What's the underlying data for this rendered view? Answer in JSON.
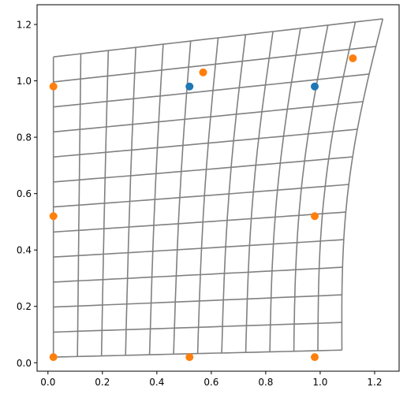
{
  "chart_data": {
    "type": "scatter",
    "title": "",
    "xlabel": "",
    "ylabel": "",
    "xlim": [
      -0.04,
      1.29
    ],
    "ylim": [
      -0.03,
      1.27
    ],
    "xticks": [
      0.0,
      0.2,
      0.4,
      0.6,
      0.8,
      1.0,
      1.2
    ],
    "xtick_labels": [
      "0.0",
      "0.2",
      "0.4",
      "0.6",
      "0.8",
      "1.0",
      "1.2"
    ],
    "yticks": [
      0.0,
      0.2,
      0.4,
      0.6,
      0.8,
      1.0,
      1.2
    ],
    "ytick_labels": [
      "0.0",
      "0.2",
      "0.4",
      "0.6",
      "0.8",
      "1.0",
      "1.2"
    ],
    "grid": false,
    "warped_grid": {
      "color": "#808080",
      "rows": 13,
      "cols": 13,
      "corners": {
        "bottom_left": [
          0.02,
          0.02
        ],
        "bottom_right": [
          1.08,
          0.045
        ],
        "top_left": [
          0.02,
          1.085
        ],
        "top_right": [
          1.23,
          1.22
        ]
      }
    },
    "series": [
      {
        "color": "#1f77b4",
        "points": [
          [
            0.52,
            0.98
          ],
          [
            0.98,
            0.98
          ]
        ]
      },
      {
        "color": "#ff7f0e",
        "points": [
          [
            0.02,
            0.02
          ],
          [
            0.52,
            0.02
          ],
          [
            0.98,
            0.02
          ],
          [
            0.02,
            0.52
          ],
          [
            0.98,
            0.52
          ],
          [
            0.02,
            0.98
          ],
          [
            0.57,
            1.03
          ],
          [
            1.12,
            1.08
          ]
        ]
      }
    ]
  }
}
